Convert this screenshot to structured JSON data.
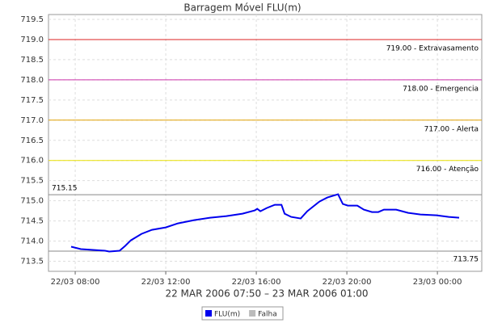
{
  "chart_data": {
    "type": "line",
    "title": "Barragem Móvel FLU(m)",
    "x_label": "22 MAR 2006 07:50 – 23 MAR 2006 01:00",
    "xlim": [
      6.82,
      25.96
    ],
    "xticks": [
      {
        "value": 8,
        "label": "22/03 08:00"
      },
      {
        "value": 12,
        "label": "22/03 12:00"
      },
      {
        "value": 16,
        "label": "22/03 16:00"
      },
      {
        "value": 20,
        "label": "22/03 20:00"
      },
      {
        "value": 24,
        "label": "23/03 00:00"
      }
    ],
    "ylim": [
      713.25,
      719.62
    ],
    "yticks": [
      713.5,
      {
        "value": 714,
        "label": "714.0"
      },
      714.5,
      {
        "value": 715,
        "label": "715.0"
      },
      715.5,
      {
        "value": 716,
        "label": "716.0"
      },
      716.5,
      {
        "value": 717,
        "label": "717.0"
      },
      717.5,
      {
        "value": 718,
        "label": "718.0"
      },
      718.5,
      {
        "value": 719,
        "label": "719.0"
      },
      719.5
    ],
    "grid": true,
    "series": [
      {
        "name": "FLU(m)",
        "color": "#0000ee",
        "x": [
          7.82,
          8.25,
          8.79,
          9.32,
          9.5,
          9.96,
          10.21,
          10.46,
          10.93,
          11.39,
          12.0,
          12.54,
          13.25,
          13.96,
          14.68,
          15.39,
          15.93,
          16.04,
          16.18,
          16.46,
          16.82,
          17.11,
          17.25,
          17.54,
          17.96,
          18.25,
          18.79,
          19.14,
          19.61,
          19.82,
          20.04,
          20.46,
          20.75,
          21.11,
          21.39,
          21.64,
          22.18,
          22.71,
          23.25,
          23.96,
          24.5,
          24.96
        ],
        "values": [
          713.86,
          713.8,
          713.78,
          713.76,
          713.74,
          713.76,
          713.88,
          714.02,
          714.18,
          714.28,
          714.34,
          714.44,
          714.52,
          714.58,
          714.62,
          714.68,
          714.76,
          714.8,
          714.74,
          714.82,
          714.9,
          714.9,
          714.68,
          714.6,
          714.56,
          714.74,
          714.98,
          715.08,
          715.16,
          714.92,
          714.88,
          714.88,
          714.78,
          714.72,
          714.72,
          714.78,
          714.78,
          714.7,
          714.66,
          714.64,
          714.6,
          714.58
        ]
      },
      {
        "name": "Falha",
        "color": "#bbbbbb",
        "x": [],
        "values": []
      }
    ],
    "thresholds": [
      {
        "value": 719,
        "label": "719.00 - Extravasamento",
        "color": "#dd2222"
      },
      {
        "value": 718,
        "label": "718.00 - Emergencia",
        "color": "#cc33aa"
      },
      {
        "value": 717,
        "label": "717.00 - Alerta",
        "color": "#e0a000"
      },
      {
        "value": 716,
        "label": "716.00 - Atenção",
        "color": "#e8e000"
      }
    ],
    "markers": [
      {
        "value": 715.15,
        "label": "715.15",
        "side": "left"
      },
      {
        "value": 713.75,
        "label": "713.75",
        "side": "right"
      }
    ]
  }
}
